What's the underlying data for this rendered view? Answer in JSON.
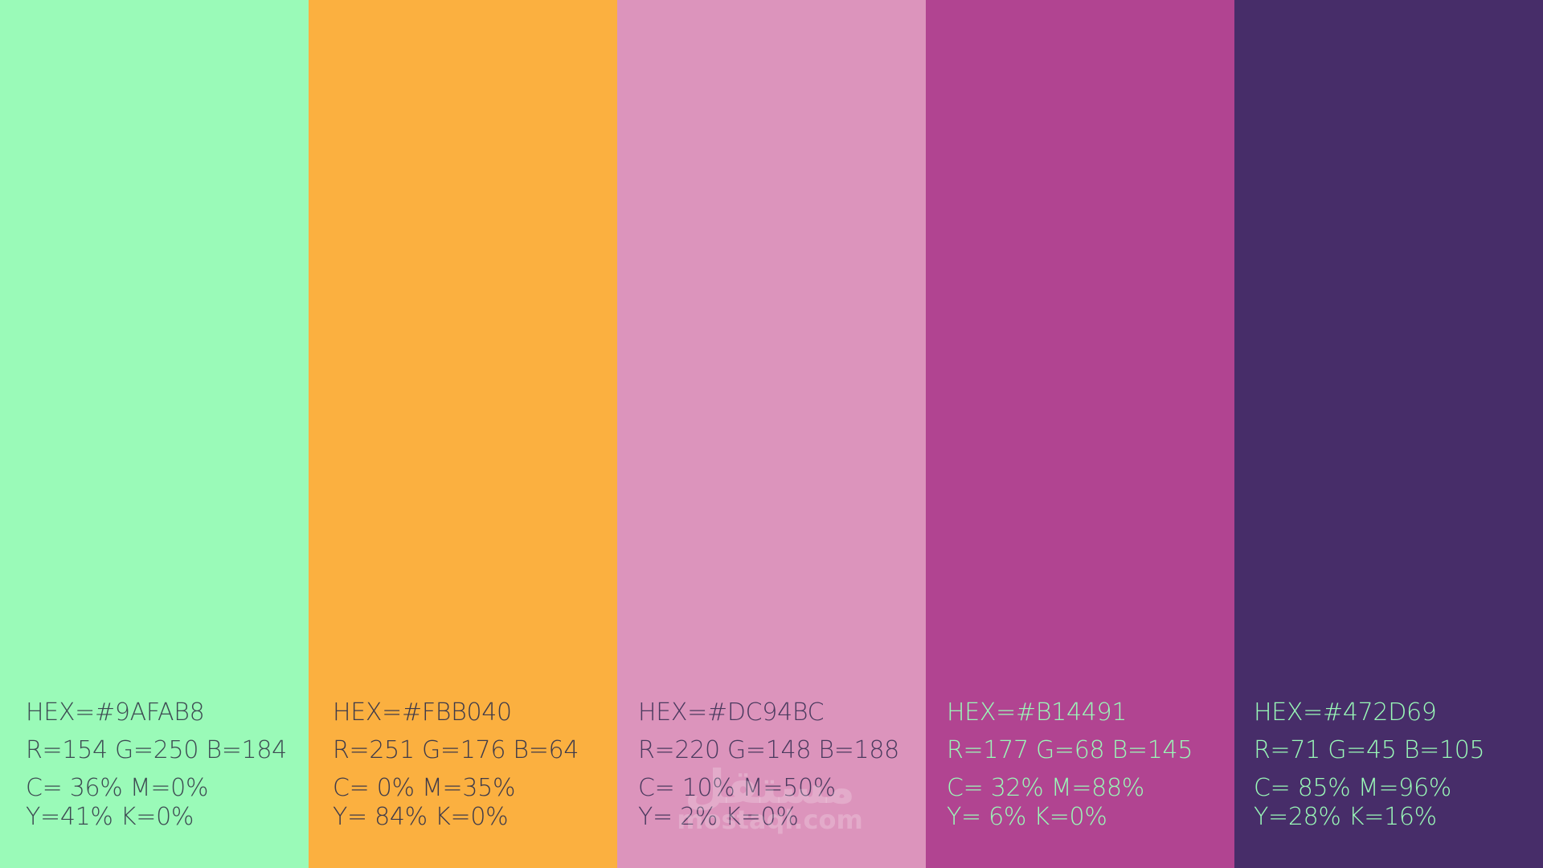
{
  "swatches": [
    {
      "color": "#9AFAB8",
      "text_color": "#3d4a52",
      "hex": "HEX=#9AFAB8",
      "rgb": "R=154 G=250 B=184",
      "cmyk_line1": "C= 36% M=0%",
      "cmyk_line2": "Y=41% K=0%"
    },
    {
      "color": "#FBB040",
      "text_color": "#3d3a4a",
      "hex": "HEX=#FBB040",
      "rgb": "R=251 G=176 B=64",
      "cmyk_line1": "C= 0% M=35%",
      "cmyk_line2": "Y= 84% K=0%"
    },
    {
      "color": "#DC94BC",
      "text_color": "#4a3a5e",
      "hex": "HEX=#DC94BC",
      "rgb": "R=220 G=148 B=188",
      "cmyk_line1": "C= 10% M=50%",
      "cmyk_line2": "Y= 2% K=0%"
    },
    {
      "color": "#B14491",
      "text_color": "#9AFAB8",
      "hex": "HEX=#B14491",
      "rgb": "R=177 G=68 B=145",
      "cmyk_line1": "C= 32% M=88%",
      "cmyk_line2": "Y= 6% K=0%"
    },
    {
      "color": "#472D69",
      "text_color": "#9AFAB8",
      "hex": "HEX=#472D69",
      "rgb": "R=71 G=45 B=105",
      "cmyk_line1": "C= 85% M=96%",
      "cmyk_line2": "Y=28% K=16%"
    }
  ],
  "watermark": {
    "logo": "مستقل",
    "text": "mostaql.com"
  }
}
